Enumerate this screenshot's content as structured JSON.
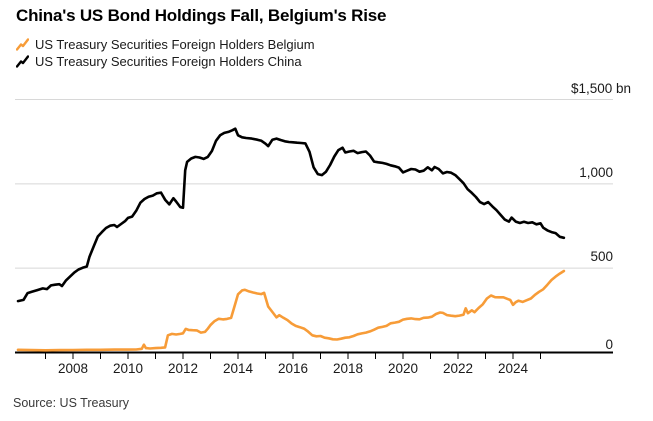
{
  "title": "China's US Bond Holdings Fall, Belgium's Rise",
  "source": "Source: US Treasury",
  "legend": [
    {
      "label": "US Treasury Securities Foreign Holders Belgium",
      "color": "#F79C38"
    },
    {
      "label": "US Treasury Securities Foreign Holders China",
      "color": "#000000"
    }
  ],
  "colors": {
    "background": "#ffffff",
    "grid": "#d8d8d8",
    "axis": "#000000",
    "belgium_line": "#F79C38",
    "china_line": "#000000",
    "text": "#1a1a1a"
  },
  "chart_data": {
    "type": "line",
    "title": "China's US Bond Holdings Fall, Belgium's Rise",
    "xlabel": "",
    "ylabel": "$ bn",
    "ylim": [
      0,
      1500
    ],
    "xlim": [
      2006,
      2027.6
    ],
    "grid": "horizontal",
    "legend_position": "top-left",
    "y_axis": {
      "labels": [
        {
          "text": "$1,500 bn",
          "value": 1500
        },
        {
          "text": "1,000",
          "value": 1000
        },
        {
          "text": "500",
          "value": 500
        },
        {
          "text": "0",
          "value": 0
        }
      ]
    },
    "x_axis": {
      "tick_years": [
        2007,
        2008,
        2009,
        2010,
        2011,
        2012,
        2013,
        2014,
        2015,
        2016,
        2017,
        2018,
        2019,
        2020,
        2021,
        2022,
        2023,
        2024,
        2025
      ],
      "labels": [
        {
          "text": "2008",
          "year": 2008
        },
        {
          "text": "2010",
          "year": 2010
        },
        {
          "text": "2012",
          "year": 2012
        },
        {
          "text": "2014",
          "year": 2014
        },
        {
          "text": "2016",
          "year": 2016
        },
        {
          "text": "2018",
          "year": 2018
        },
        {
          "text": "2020",
          "year": 2020
        },
        {
          "text": "2022",
          "year": 2022
        },
        {
          "text": "2024",
          "year": 2024
        }
      ]
    },
    "series": [
      {
        "name": "US Treasury Securities Foreign Holders Belgium",
        "color": "#F79C38",
        "points": [
          [
            2006.0,
            16
          ],
          [
            2006.5,
            14
          ],
          [
            2007.0,
            13
          ],
          [
            2007.5,
            14
          ],
          [
            2008.0,
            15
          ],
          [
            2008.5,
            16
          ],
          [
            2009.0,
            16
          ],
          [
            2009.5,
            17
          ],
          [
            2010.0,
            17
          ],
          [
            2010.3,
            18
          ],
          [
            2010.5,
            22
          ],
          [
            2010.58,
            46
          ],
          [
            2010.65,
            26
          ],
          [
            2010.8,
            24
          ],
          [
            2011.0,
            26
          ],
          [
            2011.2,
            28
          ],
          [
            2011.35,
            30
          ],
          [
            2011.45,
            102
          ],
          [
            2011.6,
            110
          ],
          [
            2011.75,
            107
          ],
          [
            2011.9,
            110
          ],
          [
            2012.0,
            114
          ],
          [
            2012.1,
            140
          ],
          [
            2012.2,
            134
          ],
          [
            2012.35,
            132
          ],
          [
            2012.5,
            131
          ],
          [
            2012.65,
            118
          ],
          [
            2012.8,
            122
          ],
          [
            2012.9,
            141
          ],
          [
            2013.0,
            163
          ],
          [
            2013.15,
            186
          ],
          [
            2013.3,
            200
          ],
          [
            2013.45,
            196
          ],
          [
            2013.6,
            199
          ],
          [
            2013.75,
            205
          ],
          [
            2013.9,
            290
          ],
          [
            2014.0,
            345
          ],
          [
            2014.15,
            368
          ],
          [
            2014.25,
            372
          ],
          [
            2014.4,
            362
          ],
          [
            2014.55,
            356
          ],
          [
            2014.7,
            350
          ],
          [
            2014.85,
            346
          ],
          [
            2014.95,
            354
          ],
          [
            2015.1,
            272
          ],
          [
            2015.25,
            240
          ],
          [
            2015.4,
            208
          ],
          [
            2015.5,
            221
          ],
          [
            2015.65,
            206
          ],
          [
            2015.8,
            192
          ],
          [
            2015.95,
            172
          ],
          [
            2016.1,
            158
          ],
          [
            2016.25,
            150
          ],
          [
            2016.4,
            142
          ],
          [
            2016.55,
            124
          ],
          [
            2016.7,
            102
          ],
          [
            2016.85,
            96
          ],
          [
            2017.0,
            98
          ],
          [
            2017.15,
            88
          ],
          [
            2017.3,
            84
          ],
          [
            2017.45,
            78
          ],
          [
            2017.6,
            77
          ],
          [
            2017.75,
            82
          ],
          [
            2017.9,
            88
          ],
          [
            2018.05,
            90
          ],
          [
            2018.2,
            98
          ],
          [
            2018.35,
            108
          ],
          [
            2018.5,
            113
          ],
          [
            2018.65,
            118
          ],
          [
            2018.8,
            125
          ],
          [
            2018.95,
            135
          ],
          [
            2019.1,
            147
          ],
          [
            2019.25,
            152
          ],
          [
            2019.4,
            158
          ],
          [
            2019.55,
            173
          ],
          [
            2019.7,
            177
          ],
          [
            2019.85,
            182
          ],
          [
            2020.0,
            195
          ],
          [
            2020.15,
            200
          ],
          [
            2020.3,
            202
          ],
          [
            2020.45,
            198
          ],
          [
            2020.6,
            197
          ],
          [
            2020.75,
            206
          ],
          [
            2020.9,
            207
          ],
          [
            2021.05,
            212
          ],
          [
            2021.2,
            228
          ],
          [
            2021.35,
            237
          ],
          [
            2021.45,
            235
          ],
          [
            2021.6,
            222
          ],
          [
            2021.75,
            218
          ],
          [
            2021.9,
            215
          ],
          [
            2022.05,
            219
          ],
          [
            2022.2,
            224
          ],
          [
            2022.28,
            262
          ],
          [
            2022.36,
            233
          ],
          [
            2022.5,
            250
          ],
          [
            2022.6,
            239
          ],
          [
            2022.75,
            264
          ],
          [
            2022.9,
            286
          ],
          [
            2023.05,
            320
          ],
          [
            2023.2,
            338
          ],
          [
            2023.35,
            328
          ],
          [
            2023.5,
            327
          ],
          [
            2023.65,
            327
          ],
          [
            2023.8,
            318
          ],
          [
            2023.9,
            311
          ],
          [
            2024.0,
            282
          ],
          [
            2024.1,
            298
          ],
          [
            2024.2,
            307
          ],
          [
            2024.35,
            300
          ],
          [
            2024.5,
            310
          ],
          [
            2024.65,
            320
          ],
          [
            2024.8,
            342
          ],
          [
            2024.95,
            360
          ],
          [
            2025.1,
            375
          ],
          [
            2025.25,
            402
          ],
          [
            2025.4,
            430
          ],
          [
            2025.55,
            450
          ],
          [
            2025.7,
            468
          ],
          [
            2025.85,
            483
          ]
        ]
      },
      {
        "name": "US Treasury Securities Foreign Holders China",
        "color": "#000000",
        "points": [
          [
            2006.0,
            305
          ],
          [
            2006.2,
            312
          ],
          [
            2006.35,
            352
          ],
          [
            2006.5,
            360
          ],
          [
            2006.7,
            370
          ],
          [
            2006.9,
            380
          ],
          [
            2007.05,
            376
          ],
          [
            2007.2,
            398
          ],
          [
            2007.35,
            402
          ],
          [
            2007.5,
            405
          ],
          [
            2007.6,
            394
          ],
          [
            2007.75,
            428
          ],
          [
            2007.9,
            452
          ],
          [
            2008.05,
            475
          ],
          [
            2008.2,
            492
          ],
          [
            2008.35,
            502
          ],
          [
            2008.5,
            510
          ],
          [
            2008.6,
            568
          ],
          [
            2008.75,
            628
          ],
          [
            2008.9,
            688
          ],
          [
            2009.05,
            714
          ],
          [
            2009.2,
            738
          ],
          [
            2009.35,
            752
          ],
          [
            2009.5,
            756
          ],
          [
            2009.6,
            744
          ],
          [
            2009.75,
            762
          ],
          [
            2009.9,
            780
          ],
          [
            2010.0,
            798
          ],
          [
            2010.15,
            806
          ],
          [
            2010.3,
            840
          ],
          [
            2010.45,
            888
          ],
          [
            2010.6,
            910
          ],
          [
            2010.75,
            924
          ],
          [
            2010.9,
            930
          ],
          [
            2011.05,
            944
          ],
          [
            2011.2,
            948
          ],
          [
            2011.35,
            906
          ],
          [
            2011.5,
            878
          ],
          [
            2011.65,
            915
          ],
          [
            2011.75,
            895
          ],
          [
            2011.9,
            862
          ],
          [
            2012.0,
            858
          ],
          [
            2012.08,
            1080
          ],
          [
            2012.15,
            1130
          ],
          [
            2012.3,
            1150
          ],
          [
            2012.45,
            1160
          ],
          [
            2012.6,
            1156
          ],
          [
            2012.75,
            1148
          ],
          [
            2012.9,
            1160
          ],
          [
            2013.05,
            1195
          ],
          [
            2013.2,
            1255
          ],
          [
            2013.35,
            1288
          ],
          [
            2013.5,
            1302
          ],
          [
            2013.65,
            1308
          ],
          [
            2013.8,
            1318
          ],
          [
            2013.9,
            1327
          ],
          [
            2014.0,
            1288
          ],
          [
            2014.15,
            1276
          ],
          [
            2014.3,
            1272
          ],
          [
            2014.5,
            1268
          ],
          [
            2014.7,
            1262
          ],
          [
            2014.85,
            1255
          ],
          [
            2015.0,
            1238
          ],
          [
            2015.1,
            1224
          ],
          [
            2015.25,
            1262
          ],
          [
            2015.4,
            1268
          ],
          [
            2015.55,
            1260
          ],
          [
            2015.7,
            1252
          ],
          [
            2015.85,
            1248
          ],
          [
            2016.0,
            1246
          ],
          [
            2016.15,
            1244
          ],
          [
            2016.3,
            1242
          ],
          [
            2016.45,
            1240
          ],
          [
            2016.6,
            1190
          ],
          [
            2016.75,
            1098
          ],
          [
            2016.9,
            1058
          ],
          [
            2017.05,
            1052
          ],
          [
            2017.2,
            1072
          ],
          [
            2017.35,
            1112
          ],
          [
            2017.5,
            1162
          ],
          [
            2017.65,
            1200
          ],
          [
            2017.8,
            1214
          ],
          [
            2017.9,
            1186
          ],
          [
            2018.05,
            1192
          ],
          [
            2018.2,
            1196
          ],
          [
            2018.35,
            1182
          ],
          [
            2018.5,
            1188
          ],
          [
            2018.65,
            1192
          ],
          [
            2018.8,
            1168
          ],
          [
            2018.95,
            1132
          ],
          [
            2019.1,
            1128
          ],
          [
            2019.25,
            1124
          ],
          [
            2019.4,
            1118
          ],
          [
            2019.55,
            1110
          ],
          [
            2019.7,
            1104
          ],
          [
            2019.85,
            1096
          ],
          [
            2020.0,
            1068
          ],
          [
            2020.15,
            1078
          ],
          [
            2020.3,
            1088
          ],
          [
            2020.45,
            1085
          ],
          [
            2020.6,
            1072
          ],
          [
            2020.75,
            1078
          ],
          [
            2020.9,
            1098
          ],
          [
            2021.05,
            1080
          ],
          [
            2021.15,
            1100
          ],
          [
            2021.3,
            1088
          ],
          [
            2021.45,
            1062
          ],
          [
            2021.6,
            1070
          ],
          [
            2021.75,
            1066
          ],
          [
            2021.9,
            1052
          ],
          [
            2022.05,
            1028
          ],
          [
            2022.2,
            1004
          ],
          [
            2022.35,
            968
          ],
          [
            2022.5,
            946
          ],
          [
            2022.65,
            922
          ],
          [
            2022.8,
            892
          ],
          [
            2022.95,
            880
          ],
          [
            2023.1,
            892
          ],
          [
            2023.25,
            866
          ],
          [
            2023.4,
            844
          ],
          [
            2023.55,
            816
          ],
          [
            2023.7,
            788
          ],
          [
            2023.85,
            776
          ],
          [
            2023.95,
            800
          ],
          [
            2024.1,
            776
          ],
          [
            2024.25,
            768
          ],
          [
            2024.4,
            775
          ],
          [
            2024.55,
            768
          ],
          [
            2024.7,
            772
          ],
          [
            2024.85,
            760
          ],
          [
            2025.0,
            766
          ],
          [
            2025.1,
            740
          ],
          [
            2025.25,
            724
          ],
          [
            2025.4,
            714
          ],
          [
            2025.55,
            708
          ],
          [
            2025.7,
            686
          ],
          [
            2025.85,
            680
          ]
        ]
      }
    ]
  }
}
